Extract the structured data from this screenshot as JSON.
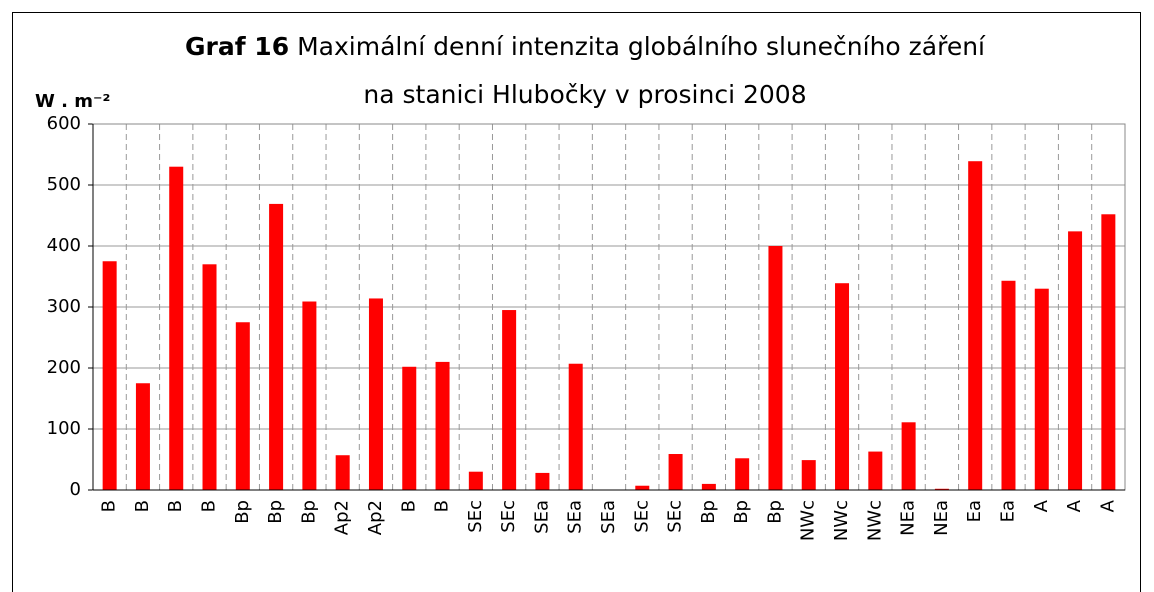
{
  "chart_data": {
    "type": "bar",
    "title_label": "Graf 16",
    "title": [
      "Maximální denní intenzita globálního slunečního záření",
      "na stanici Hlubočky v prosinci 2008"
    ],
    "y_label": "W . m⁻²",
    "categories": [
      "B",
      "B",
      "B",
      "B",
      "Bp",
      "Bp",
      "Bp",
      "Ap2",
      "Ap2",
      "B",
      "B",
      "SEc",
      "SEc",
      "SEa",
      "SEa",
      "SEa",
      "SEc",
      "SEc",
      "Bp",
      "Bp",
      "Bp",
      "NWc",
      "NWc",
      "NWc",
      "NEa",
      "NEa",
      "Ea",
      "Ea",
      "A",
      "A",
      "A"
    ],
    "values": [
      375,
      175,
      530,
      370,
      275,
      469,
      309,
      57,
      314,
      202,
      210,
      30,
      295,
      28,
      207,
      0,
      7,
      59,
      10,
      52,
      400,
      49,
      339,
      63,
      111,
      2,
      539,
      343,
      330,
      424,
      452
    ],
    "color": "#ff0000",
    "ylim": [
      0,
      600
    ],
    "yticks": [
      0,
      100,
      200,
      300,
      400,
      500,
      600
    ],
    "grid": true
  }
}
